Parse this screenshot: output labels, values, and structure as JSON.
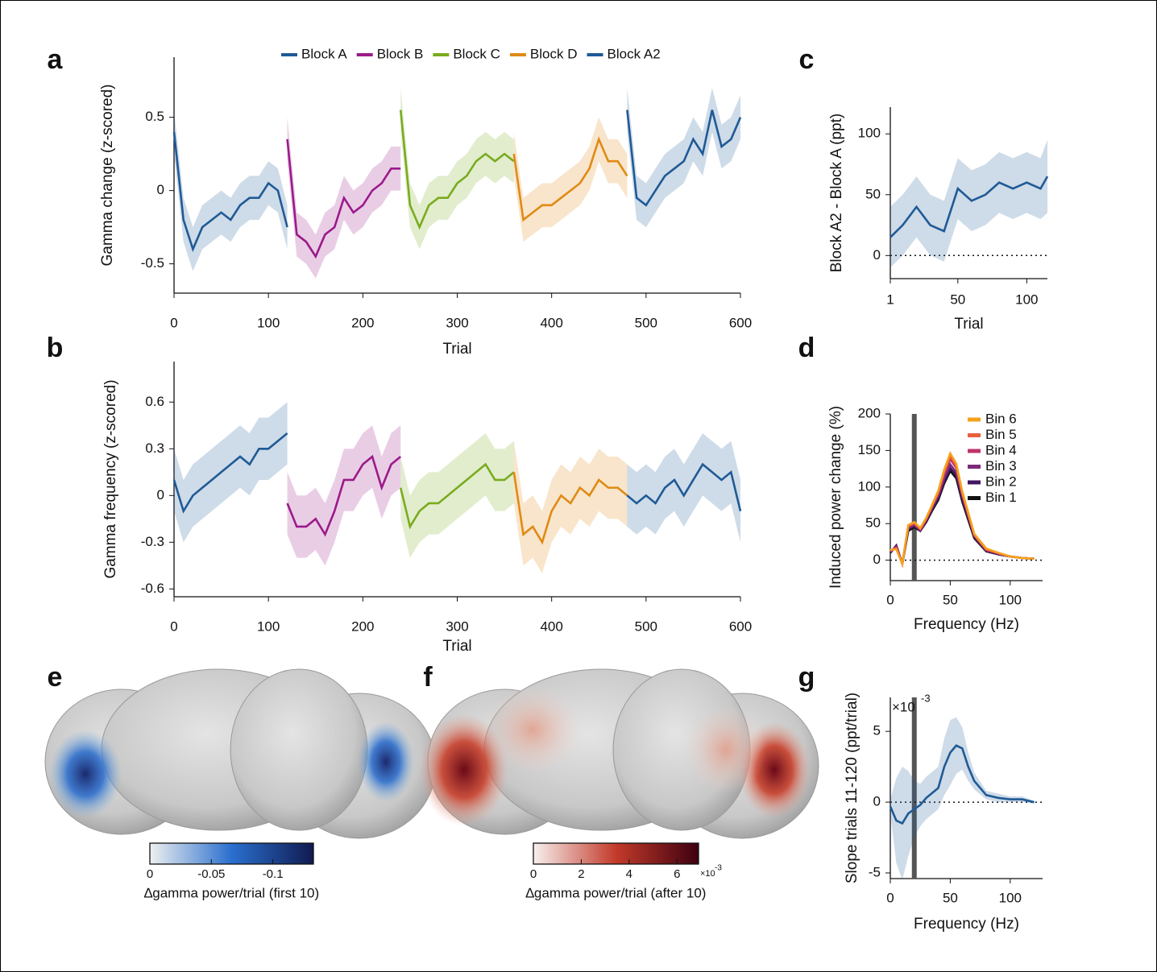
{
  "chart_data": [
    {
      "type": "line",
      "label": "a",
      "xlabel": "Trial",
      "ylabel": "Gamma change (z-scored)",
      "xlim": [
        0,
        600
      ],
      "ylim": [
        -0.7,
        0.91
      ],
      "xticks": [
        0,
        100,
        200,
        300,
        400,
        500,
        600
      ],
      "yticks": [
        -0.5,
        0,
        0.5
      ],
      "series": [
        {
          "name": "Block A",
          "color": "#1f5a96",
          "x": [
            0,
            10,
            20,
            30,
            40,
            50,
            60,
            70,
            80,
            90,
            100,
            110,
            120
          ],
          "values": [
            0.4,
            -0.2,
            -0.4,
            -0.25,
            -0.2,
            -0.15,
            -0.2,
            -0.1,
            -0.05,
            -0.05,
            0.05,
            0.0,
            -0.25
          ],
          "errors": [
            0.15,
            0.15,
            0.15,
            0.15,
            0.15,
            0.15,
            0.15,
            0.15,
            0.15,
            0.15,
            0.15,
            0.15,
            0.15
          ]
        },
        {
          "name": "Block B",
          "color": "#9b1a8a",
          "x": [
            120,
            130,
            140,
            150,
            160,
            170,
            180,
            190,
            200,
            210,
            220,
            230,
            240
          ],
          "values": [
            0.35,
            -0.3,
            -0.35,
            -0.45,
            -0.3,
            -0.25,
            -0.05,
            -0.15,
            -0.1,
            0.0,
            0.05,
            0.15,
            0.15
          ],
          "errors": [
            0.15,
            0.15,
            0.15,
            0.15,
            0.15,
            0.15,
            0.15,
            0.15,
            0.15,
            0.15,
            0.15,
            0.15,
            0.15
          ]
        },
        {
          "name": "Block C",
          "color": "#7aab1e",
          "x": [
            240,
            250,
            260,
            270,
            280,
            290,
            300,
            310,
            320,
            330,
            340,
            350,
            360
          ],
          "values": [
            0.55,
            -0.1,
            -0.25,
            -0.1,
            -0.05,
            -0.05,
            0.05,
            0.1,
            0.2,
            0.25,
            0.2,
            0.25,
            0.2
          ],
          "errors": [
            0.15,
            0.15,
            0.15,
            0.15,
            0.15,
            0.15,
            0.15,
            0.15,
            0.15,
            0.15,
            0.15,
            0.15,
            0.15
          ]
        },
        {
          "name": "Block D",
          "color": "#e08a14",
          "x": [
            360,
            370,
            380,
            390,
            400,
            410,
            420,
            430,
            440,
            450,
            460,
            470,
            480
          ],
          "values": [
            0.25,
            -0.2,
            -0.15,
            -0.1,
            -0.1,
            -0.05,
            0.0,
            0.05,
            0.15,
            0.35,
            0.2,
            0.2,
            0.1
          ],
          "errors": [
            0.15,
            0.15,
            0.15,
            0.15,
            0.15,
            0.15,
            0.15,
            0.15,
            0.15,
            0.15,
            0.15,
            0.15,
            0.15
          ]
        },
        {
          "name": "Block A2",
          "color": "#1f5a96",
          "x": [
            480,
            490,
            500,
            510,
            520,
            530,
            540,
            550,
            560,
            570,
            580,
            590,
            600
          ],
          "values": [
            0.55,
            -0.05,
            -0.1,
            0.0,
            0.1,
            0.15,
            0.2,
            0.35,
            0.25,
            0.55,
            0.3,
            0.35,
            0.5
          ],
          "errors": [
            0.15,
            0.15,
            0.15,
            0.15,
            0.15,
            0.15,
            0.15,
            0.15,
            0.15,
            0.15,
            0.15,
            0.15,
            0.15
          ]
        }
      ]
    },
    {
      "type": "line",
      "label": "b",
      "xlabel": "Trial",
      "ylabel": "Gamma frequency (z-scored)",
      "xlim": [
        0,
        600
      ],
      "ylim": [
        -0.65,
        0.86
      ],
      "xticks": [
        0,
        100,
        200,
        300,
        400,
        500,
        600
      ],
      "yticks": [
        -0.6,
        -0.3,
        0,
        0.3,
        0.6
      ],
      "series": [
        {
          "color": "#1f5a96",
          "x": [
            0,
            10,
            20,
            30,
            40,
            50,
            60,
            70,
            80,
            90,
            100,
            110,
            120
          ],
          "values": [
            0.1,
            -0.1,
            0.0,
            0.05,
            0.1,
            0.15,
            0.2,
            0.25,
            0.2,
            0.3,
            0.3,
            0.35,
            0.4
          ],
          "errors": [
            0.2,
            0.2,
            0.2,
            0.2,
            0.2,
            0.2,
            0.2,
            0.2,
            0.2,
            0.2,
            0.2,
            0.2,
            0.2
          ]
        },
        {
          "color": "#9b1a8a",
          "x": [
            120,
            130,
            140,
            150,
            160,
            170,
            180,
            190,
            200,
            210,
            220,
            230,
            240
          ],
          "values": [
            -0.05,
            -0.2,
            -0.2,
            -0.15,
            -0.25,
            -0.1,
            0.1,
            0.1,
            0.2,
            0.25,
            0.05,
            0.2,
            0.25
          ],
          "errors": [
            0.2,
            0.2,
            0.2,
            0.2,
            0.2,
            0.2,
            0.2,
            0.2,
            0.2,
            0.2,
            0.2,
            0.2,
            0.2
          ]
        },
        {
          "color": "#7aab1e",
          "x": [
            240,
            250,
            260,
            270,
            280,
            290,
            300,
            310,
            320,
            330,
            340,
            350,
            360
          ],
          "values": [
            0.05,
            -0.2,
            -0.1,
            -0.05,
            -0.05,
            0.0,
            0.05,
            0.1,
            0.15,
            0.2,
            0.1,
            0.1,
            0.15
          ],
          "errors": [
            0.2,
            0.2,
            0.2,
            0.2,
            0.2,
            0.2,
            0.2,
            0.2,
            0.2,
            0.2,
            0.2,
            0.2,
            0.2
          ]
        },
        {
          "color": "#e08a14",
          "x": [
            360,
            370,
            380,
            390,
            400,
            410,
            420,
            430,
            440,
            450,
            460,
            470,
            480
          ],
          "values": [
            0.15,
            -0.25,
            -0.2,
            -0.3,
            -0.1,
            0.0,
            -0.05,
            0.05,
            0.0,
            0.1,
            0.05,
            0.05,
            0.0
          ],
          "errors": [
            0.2,
            0.2,
            0.2,
            0.2,
            0.2,
            0.2,
            0.2,
            0.2,
            0.2,
            0.2,
            0.2,
            0.2,
            0.2
          ]
        },
        {
          "color": "#1f5a96",
          "x": [
            480,
            490,
            500,
            510,
            520,
            530,
            540,
            550,
            560,
            570,
            580,
            590,
            600
          ],
          "values": [
            0.0,
            -0.05,
            0.0,
            -0.05,
            0.05,
            0.1,
            0.0,
            0.1,
            0.2,
            0.15,
            0.1,
            0.15,
            -0.1
          ],
          "errors": [
            0.2,
            0.2,
            0.2,
            0.2,
            0.2,
            0.2,
            0.2,
            0.2,
            0.2,
            0.2,
            0.2,
            0.2,
            0.2
          ]
        }
      ]
    },
    {
      "type": "line",
      "label": "c",
      "xlabel": "Trial",
      "ylabel": "Block A2 - Block A (ppt)",
      "xlim": [
        1,
        115
      ],
      "ylim": [
        -19,
        122
      ],
      "xticks": [
        1,
        50,
        100
      ],
      "yticks": [
        0,
        50,
        100
      ],
      "hline": 0,
      "series": [
        {
          "color": "#1f5a96",
          "x": [
            1,
            10,
            20,
            30,
            40,
            50,
            60,
            70,
            80,
            90,
            100,
            110,
            115
          ],
          "values": [
            15,
            25,
            40,
            25,
            20,
            55,
            45,
            50,
            60,
            55,
            60,
            55,
            65
          ],
          "errors": [
            25,
            25,
            25,
            25,
            25,
            25,
            25,
            25,
            25,
            25,
            25,
            25,
            30
          ]
        }
      ]
    },
    {
      "type": "line",
      "label": "d",
      "xlabel": "Frequency (Hz)",
      "ylabel": "Induced power change (%)",
      "xlim": [
        0,
        127
      ],
      "ylim": [
        -28,
        200
      ],
      "xticks": [
        0,
        50,
        100
      ],
      "yticks": [
        0,
        50,
        100,
        150,
        200
      ],
      "hline": 0,
      "vline": 20,
      "series": [
        {
          "name": "Bin 6",
          "color": "#f5a21b",
          "x": [
            0,
            5,
            10,
            15,
            20,
            25,
            30,
            35,
            40,
            45,
            50,
            55,
            60,
            70,
            80,
            90,
            100,
            110,
            120
          ],
          "values": [
            14,
            15,
            -5,
            48,
            52,
            44,
            58,
            76,
            95,
            124,
            146,
            132,
            94,
            36,
            16,
            10,
            5,
            3,
            2
          ]
        },
        {
          "name": "Bin 5",
          "color": "#e8603c",
          "x": [
            0,
            5,
            10,
            15,
            20,
            25,
            30,
            35,
            40,
            45,
            50,
            55,
            60,
            70,
            80,
            90,
            100,
            110,
            120
          ],
          "values": [
            13,
            16,
            -5,
            47,
            51,
            43,
            57,
            75,
            93,
            121,
            142,
            129,
            92,
            35,
            15,
            10,
            5,
            3,
            2
          ]
        },
        {
          "name": "Bin 4",
          "color": "#c0346b",
          "x": [
            0,
            5,
            10,
            15,
            20,
            25,
            30,
            35,
            40,
            45,
            50,
            55,
            60,
            70,
            80,
            90,
            100,
            110,
            120
          ],
          "values": [
            12,
            18,
            -5,
            46,
            50,
            42,
            56,
            74,
            91,
            118,
            138,
            126,
            90,
            34,
            14,
            9,
            5,
            3,
            2
          ]
        },
        {
          "name": "Bin 3",
          "color": "#7d2a78",
          "x": [
            0,
            5,
            10,
            15,
            20,
            25,
            30,
            35,
            40,
            45,
            50,
            55,
            60,
            70,
            80,
            90,
            100,
            110,
            120
          ],
          "values": [
            12,
            18,
            -5,
            44,
            48,
            41,
            55,
            72,
            88,
            112,
            131,
            120,
            87,
            33,
            13,
            9,
            5,
            3,
            2
          ]
        },
        {
          "name": "Bin 2",
          "color": "#3f1660",
          "x": [
            0,
            5,
            10,
            15,
            20,
            25,
            30,
            35,
            40,
            45,
            50,
            55,
            60,
            70,
            80,
            90,
            100,
            110,
            120
          ],
          "values": [
            10,
            20,
            -5,
            42,
            47,
            40,
            53,
            70,
            85,
            108,
            126,
            116,
            84,
            32,
            13,
            8,
            5,
            3,
            2
          ]
        },
        {
          "name": "Bin 1",
          "color": "#111111",
          "x": [
            0,
            5,
            10,
            15,
            20,
            25,
            30,
            35,
            40,
            45,
            50,
            55,
            60,
            70,
            80,
            90,
            100,
            110,
            120
          ],
          "values": [
            10,
            20,
            -5,
            40,
            45,
            40,
            52,
            68,
            82,
            105,
            122,
            112,
            80,
            30,
            12,
            8,
            5,
            3,
            2
          ]
        }
      ]
    },
    {
      "type": "line",
      "label": "g",
      "xlabel": "Frequency (Hz)",
      "ylabel": "Slope trials 11-120 (ppt/trial)",
      "xlim": [
        0,
        127
      ],
      "ylim": [
        -5.4,
        7.4
      ],
      "xticks": [
        0,
        50,
        100
      ],
      "yticks": [
        -5,
        0,
        5
      ],
      "hline": 0,
      "vline": 20,
      "multiplier": {
        "base": "×10",
        "exponent": "-3"
      },
      "series": [
        {
          "color": "#1f5a96",
          "x": [
            0,
            5,
            10,
            15,
            20,
            25,
            30,
            40,
            45,
            50,
            55,
            60,
            65,
            70,
            80,
            90,
            100,
            110,
            120
          ],
          "values": [
            -0.3,
            -1.3,
            -1.5,
            -0.8,
            -0.5,
            -0.2,
            0.3,
            1.0,
            2.5,
            3.5,
            4.0,
            3.8,
            2.5,
            1.5,
            0.5,
            0.3,
            0.2,
            0.2,
            0.0
          ],
          "errors": [
            0.5,
            3,
            4,
            3,
            2,
            1.5,
            1.5,
            1.5,
            2,
            2.3,
            2,
            1.5,
            1,
            0.6,
            0.3,
            0.3,
            0.2,
            0.2,
            0.1
          ]
        }
      ]
    },
    {
      "type": "colorbar",
      "label": "e",
      "title": "∆gamma power/trial (first 10)",
      "lim": [
        0,
        -0.133
      ],
      "ticks": [
        0,
        -0.05,
        -0.1
      ],
      "colors": [
        "#eef0f0",
        "#2a6fce",
        "#101a50"
      ]
    },
    {
      "type": "colorbar",
      "label": "f",
      "title": "∆gamma power/trial (after 10)",
      "lim": [
        0,
        6.9
      ],
      "ticks": [
        0,
        2,
        4,
        6
      ],
      "colors": [
        "#f7f0ee",
        "#c23a2a",
        "#3e0010"
      ],
      "multiplier": {
        "base": "×10",
        "exponent": "-3"
      }
    }
  ]
}
